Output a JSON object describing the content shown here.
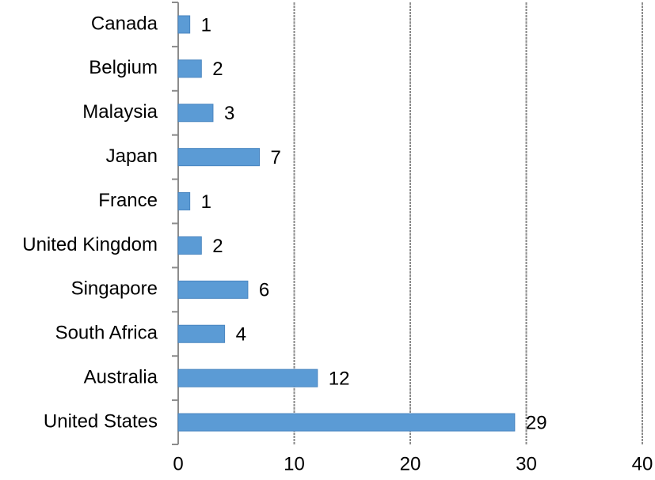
{
  "chart_data": {
    "type": "barh",
    "categories": [
      "Canada",
      "Belgium",
      "Malaysia",
      "Japan",
      "France",
      "United Kingdom",
      "Singapore",
      "South Africa",
      "Australia",
      "United States"
    ],
    "values": [
      1,
      2,
      3,
      7,
      1,
      2,
      6,
      4,
      12,
      29
    ],
    "color": "#5b9bd5",
    "xlim": [
      0,
      40
    ],
    "xticks": [
      0,
      10,
      20,
      30,
      40
    ],
    "grid": true
  }
}
